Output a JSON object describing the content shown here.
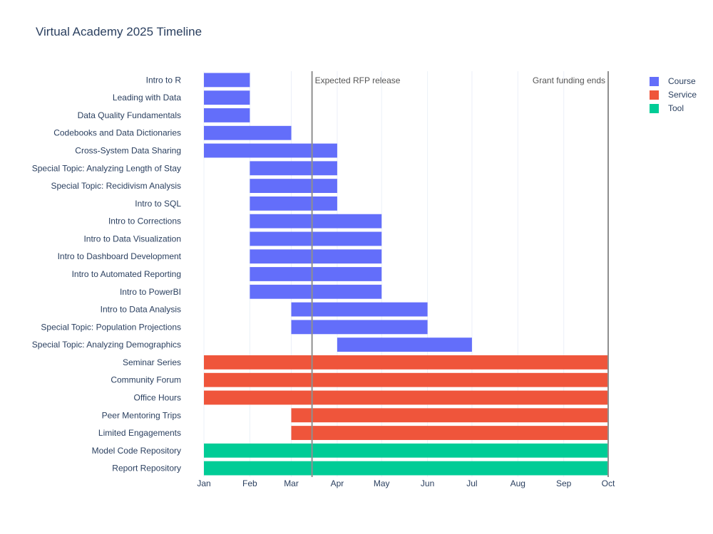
{
  "chart_data": {
    "type": "bar",
    "orientation": "horizontal-timeline",
    "title": "Virtual Academy 2025 Timeline",
    "xlabel": "",
    "ylabel": "",
    "x_range": [
      "2025-01-01",
      "2025-10-01"
    ],
    "x_ticks": [
      {
        "date": "2025-01-01",
        "label": "Jan"
      },
      {
        "date": "2025-02-01",
        "label": "Feb"
      },
      {
        "date": "2025-03-01",
        "label": "Mar"
      },
      {
        "date": "2025-04-01",
        "label": "Apr"
      },
      {
        "date": "2025-05-01",
        "label": "May"
      },
      {
        "date": "2025-06-01",
        "label": "Jun"
      },
      {
        "date": "2025-07-01",
        "label": "Jul"
      },
      {
        "date": "2025-08-01",
        "label": "Aug"
      },
      {
        "date": "2025-09-01",
        "label": "Sep"
      },
      {
        "date": "2025-10-01",
        "label": "Oct"
      }
    ],
    "grid": true,
    "legend_position": "top-right",
    "legend": [
      {
        "name": "Course",
        "color": "#636efa"
      },
      {
        "name": "Service",
        "color": "#ef553b"
      },
      {
        "name": "Tool",
        "color": "#00cc96"
      }
    ],
    "annotations": [
      {
        "date": "2025-03-15",
        "label": "Expected RFP release",
        "align": "right"
      },
      {
        "date": "2025-10-01",
        "label": "Grant funding ends",
        "align": "left"
      }
    ],
    "tasks": [
      {
        "name": "Intro to R",
        "start": "2025-01-01",
        "end": "2025-02-01",
        "type": "Course"
      },
      {
        "name": "Leading with Data",
        "start": "2025-01-01",
        "end": "2025-02-01",
        "type": "Course"
      },
      {
        "name": "Data Quality Fundamentals",
        "start": "2025-01-01",
        "end": "2025-02-01",
        "type": "Course"
      },
      {
        "name": "Codebooks and Data Dictionaries",
        "start": "2025-01-01",
        "end": "2025-03-01",
        "type": "Course"
      },
      {
        "name": "Cross-System Data Sharing",
        "start": "2025-01-01",
        "end": "2025-04-01",
        "type": "Course"
      },
      {
        "name": "Special Topic: Analyzing Length of Stay",
        "start": "2025-02-01",
        "end": "2025-04-01",
        "type": "Course"
      },
      {
        "name": "Special Topic: Recidivism Analysis",
        "start": "2025-02-01",
        "end": "2025-04-01",
        "type": "Course"
      },
      {
        "name": "Intro to SQL",
        "start": "2025-02-01",
        "end": "2025-04-01",
        "type": "Course"
      },
      {
        "name": "Intro to Corrections",
        "start": "2025-02-01",
        "end": "2025-05-01",
        "type": "Course"
      },
      {
        "name": "Intro to Data Visualization",
        "start": "2025-02-01",
        "end": "2025-05-01",
        "type": "Course"
      },
      {
        "name": "Intro to Dashboard Development",
        "start": "2025-02-01",
        "end": "2025-05-01",
        "type": "Course"
      },
      {
        "name": "Intro to Automated Reporting",
        "start": "2025-02-01",
        "end": "2025-05-01",
        "type": "Course"
      },
      {
        "name": "Intro to PowerBI",
        "start": "2025-02-01",
        "end": "2025-05-01",
        "type": "Course"
      },
      {
        "name": "Intro to Data Analysis",
        "start": "2025-03-01",
        "end": "2025-06-01",
        "type": "Course"
      },
      {
        "name": "Special Topic: Population Projections",
        "start": "2025-03-01",
        "end": "2025-06-01",
        "type": "Course"
      },
      {
        "name": "Special Topic: Analyzing Demographics",
        "start": "2025-04-01",
        "end": "2025-07-01",
        "type": "Course"
      },
      {
        "name": "Seminar Series",
        "start": "2025-01-01",
        "end": "2025-10-01",
        "type": "Service"
      },
      {
        "name": "Community Forum",
        "start": "2025-01-01",
        "end": "2025-10-01",
        "type": "Service"
      },
      {
        "name": "Office Hours",
        "start": "2025-01-01",
        "end": "2025-10-01",
        "type": "Service"
      },
      {
        "name": "Peer Mentoring Trips",
        "start": "2025-03-01",
        "end": "2025-10-01",
        "type": "Service"
      },
      {
        "name": "Limited Engagements",
        "start": "2025-03-01",
        "end": "2025-10-01",
        "type": "Service"
      },
      {
        "name": "Model Code Repository",
        "start": "2025-01-01",
        "end": "2025-10-01",
        "type": "Tool"
      },
      {
        "name": "Report Repository",
        "start": "2025-01-01",
        "end": "2025-10-01",
        "type": "Tool"
      }
    ]
  }
}
